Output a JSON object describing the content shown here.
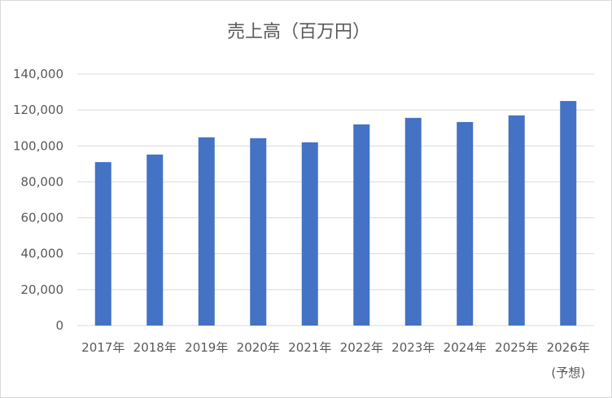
{
  "chart_data": {
    "type": "bar",
    "title": "売上高（百万円）",
    "categories": [
      "2017年",
      "2018年",
      "2019年",
      "2020年",
      "2021年",
      "2022年",
      "2023年",
      "2024年",
      "2025年",
      "2026年"
    ],
    "category_notes": [
      "",
      "",
      "",
      "",
      "",
      "",
      "",
      "",
      "",
      "(予想)"
    ],
    "values": [
      91000,
      95200,
      104800,
      104300,
      102000,
      112000,
      115600,
      113300,
      117000,
      125000
    ],
    "ylim": [
      0,
      140000
    ],
    "yticks": [
      "0",
      "20,000",
      "40,000",
      "60,000",
      "80,000",
      "100,000",
      "120,000",
      "140,000"
    ],
    "grid": true,
    "legend": "none",
    "bar_color": "#4472c4",
    "grid_color": "#d9d9d9"
  }
}
